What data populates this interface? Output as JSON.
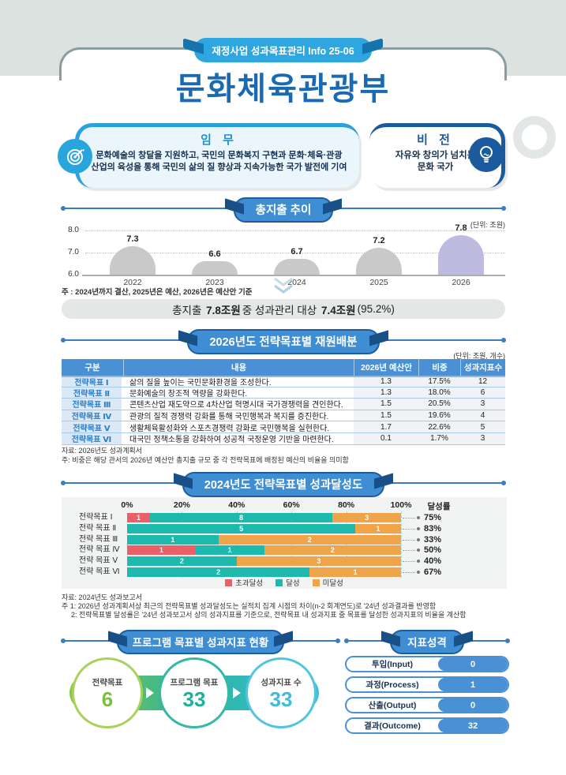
{
  "badge": "재정사업 성과목표관리 Info 25-06",
  "title": "문화체육관광부",
  "mission": {
    "title": "임 무",
    "line1": "문화예술의 창달을 지원하고, 국민의 문화복지 구현과 문화·체육·관광",
    "line2": "산업의 육성을 통해 국민의 삶의 질 향상과 지속가능한 국가 발전에 기여"
  },
  "vision": {
    "title": "비 전",
    "line1": "자유와 창의가 넘치는",
    "line2": "문화 국가"
  },
  "expenditure": {
    "section_title": "총지출 추이",
    "unit": "(단위: 조원)",
    "note": "주 : 2024년까지 결산, 2025년은 예산, 2026년은 예산안 기준",
    "summary": {
      "p1": "총지출",
      "b1": "7.8조원",
      "p2": "중 성과관리 대상",
      "b2": "7.4조원",
      "p3": "(95.2%)"
    },
    "yticks": [
      "8.0",
      "7.0",
      "6.0"
    ]
  },
  "allocation": {
    "section_title": "2026년도 전략목표별 재원배분",
    "unit": "(단위: 조원, 개수)",
    "headers": [
      "구분",
      "내용",
      "2026년 예산안",
      "비중",
      "성과지표수"
    ],
    "rows": [
      {
        "goal": "전략목표 Ⅰ",
        "desc": "삶의 질을 높이는 국민문화환경을 조성한다.",
        "budget": "1.3",
        "share": "17.5%",
        "count": "12"
      },
      {
        "goal": "전략목표 Ⅱ",
        "desc": "문화예술의 창조적 역량을 강화한다.",
        "budget": "1.3",
        "share": "18.0%",
        "count": "6"
      },
      {
        "goal": "전략목표 Ⅲ",
        "desc": "콘텐츠산업 재도약으로 4차산업 혁명시대 국가경쟁력을 견인한다.",
        "budget": "1.5",
        "share": "20.5%",
        "count": "3"
      },
      {
        "goal": "전략목표 Ⅳ",
        "desc": "관광의 질적 경쟁력 강화를 통해 국민행복과 복지를 증진한다.",
        "budget": "1.5",
        "share": "19.6%",
        "count": "4"
      },
      {
        "goal": "전략목표 Ⅴ",
        "desc": "생활체육활성화와 스포츠경쟁력 강화로 국민행복을 실현한다.",
        "budget": "1.7",
        "share": "22.6%",
        "count": "5"
      },
      {
        "goal": "전략목표 Ⅵ",
        "desc": "대국민 정책소통을 강화하여 성공적 국정운영 기반을 마련한다.",
        "budget": "0.1",
        "share": "1.7%",
        "count": "3"
      }
    ],
    "source": "자료: 2026년도 성과계획서",
    "note": "주: 비중은 해당 관서의 2026년 예산안 총지출 규모 중 각 전략목표에 배정된 예산의 비율을 의미함"
  },
  "achievement": {
    "section_title": "2024년도 전략목표별 성과달성도",
    "source": "자료: 2024년도 성과보고서",
    "note1": "주 1: 2026년 성과계획서상 최근의 전략목표별 성과달성도는 실적치 집계 시점의 차이(n-2 회계연도)로 '24년 성과결과를 반영함",
    "note2": "2: 전략목표별 달성률은 '24년 성과보고서 상의 성과지표를 기준으로, 전략목표 내 성과지표 중 목표를 달성한 성과지표의 비율을 계산함"
  },
  "program": {
    "section_title": "프로그램 목표별 성과지표 현황",
    "steps": [
      {
        "label": "전략목표",
        "value": "6"
      },
      {
        "label": "프로그램 목표",
        "value": "33"
      },
      {
        "label": "성과지표 수",
        "value": "33"
      }
    ]
  },
  "indicator_nature": {
    "section_title": "지표성격",
    "rows": [
      {
        "label": "투입(Input)",
        "value": "0"
      },
      {
        "label": "과정(Process)",
        "value": "1"
      },
      {
        "label": "산출(Output)",
        "value": "0"
      },
      {
        "label": "결과(Outcome)",
        "value": "32"
      }
    ]
  },
  "chart_data": [
    {
      "type": "bar",
      "title": "총지출 추이",
      "unit": "조원",
      "x": [
        "2022",
        "2023",
        "2024",
        "2025",
        "2026"
      ],
      "values": [
        7.3,
        6.6,
        6.7,
        7.2,
        7.8
      ],
      "ylim": [
        6.0,
        8.0
      ],
      "yticks": [
        6.0,
        7.0,
        8.0
      ],
      "bar_colors": [
        "#c9c9c9",
        "#c9c9c9",
        "#c9c9c9",
        "#c9c9c9",
        "#bdbce0"
      ],
      "grid": "dotted-horizontal",
      "note": "2024년까지 결산, 2025년은 예산, 2026년은 예산안 기준"
    },
    {
      "type": "bar",
      "subtype": "stacked-horizontal",
      "title": "2024년도 전략목표별 성과달성도",
      "categories": [
        "전략목표 Ⅰ",
        "전략 목표 Ⅱ",
        "전략 목표 Ⅲ",
        "전략 목표 Ⅳ",
        "전략 목표 Ⅴ",
        "전략 목표 Ⅵ"
      ],
      "series": [
        {
          "name": "초과달성",
          "color": "#ea5f68",
          "values": [
            1,
            0,
            0,
            1,
            0,
            0
          ]
        },
        {
          "name": "달성",
          "color": "#1db9ac",
          "values": [
            8,
            5,
            1,
            1,
            2,
            2
          ]
        },
        {
          "name": "미달성",
          "color": "#f0a44a",
          "values": [
            3,
            1,
            2,
            2,
            3,
            1
          ]
        }
      ],
      "totals": [
        12,
        6,
        3,
        4,
        5,
        3
      ],
      "rates": [
        "75%",
        "83%",
        "33%",
        "50%",
        "40%",
        "67%"
      ],
      "x_axis": [
        "0%",
        "20%",
        "40%",
        "60%",
        "80%",
        "100%"
      ],
      "rate_header": "달성률",
      "xlim_pct": [
        0,
        100
      ],
      "legend_position": "bottom"
    }
  ]
}
